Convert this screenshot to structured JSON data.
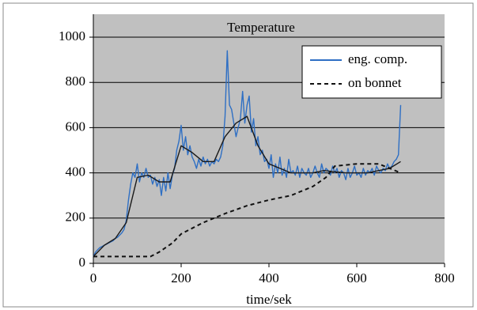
{
  "chart_data": {
    "type": "line",
    "title": "Temperature",
    "x_label": "time/sek",
    "xlim": [
      0,
      800
    ],
    "xticks": [
      0,
      200,
      400,
      600,
      800
    ],
    "ylim": [
      0,
      1000
    ],
    "yticks": [
      0,
      200,
      400,
      600,
      800,
      1000
    ],
    "grid": true,
    "legend": "upper right",
    "series": [
      {
        "name": "eng. comp.",
        "color": "#2e6fc4",
        "dash": false,
        "x": [
          0,
          5,
          10,
          15,
          20,
          25,
          30,
          35,
          40,
          45,
          50,
          55,
          60,
          65,
          70,
          75,
          80,
          85,
          90,
          95,
          100,
          105,
          110,
          115,
          120,
          125,
          130,
          135,
          140,
          145,
          150,
          155,
          160,
          165,
          170,
          175,
          180,
          185,
          190,
          195,
          200,
          205,
          210,
          215,
          220,
          225,
          230,
          235,
          240,
          245,
          250,
          255,
          260,
          265,
          270,
          275,
          280,
          285,
          290,
          295,
          300,
          305,
          310,
          315,
          320,
          325,
          330,
          335,
          340,
          345,
          350,
          355,
          360,
          365,
          370,
          375,
          380,
          385,
          390,
          395,
          400,
          405,
          410,
          415,
          420,
          425,
          430,
          435,
          440,
          445,
          450,
          455,
          460,
          465,
          470,
          475,
          480,
          485,
          490,
          495,
          500,
          505,
          510,
          515,
          520,
          525,
          530,
          535,
          540,
          545,
          550,
          555,
          560,
          565,
          570,
          575,
          580,
          585,
          590,
          595,
          600,
          605,
          610,
          615,
          620,
          625,
          630,
          635,
          640,
          645,
          650,
          655,
          660,
          665,
          670,
          675,
          680,
          685,
          690,
          695,
          700
        ],
        "values": [
          30,
          50,
          60,
          70,
          75,
          80,
          85,
          90,
          95,
          100,
          110,
          115,
          125,
          135,
          150,
          190,
          280,
          350,
          400,
          380,
          440,
          360,
          400,
          380,
          420,
          380,
          390,
          350,
          380,
          340,
          370,
          300,
          380,
          320,
          400,
          330,
          390,
          420,
          500,
          540,
          610,
          500,
          560,
          480,
          520,
          470,
          450,
          420,
          460,
          430,
          470,
          440,
          460,
          430,
          450,
          440,
          460,
          450,
          470,
          520,
          650,
          940,
          700,
          680,
          620,
          560,
          600,
          640,
          760,
          620,
          700,
          740,
          580,
          640,
          520,
          560,
          480,
          500,
          450,
          460,
          420,
          480,
          380,
          440,
          400,
          470,
          390,
          420,
          380,
          460,
          400,
          410,
          390,
          430,
          380,
          420,
          400,
          390,
          420,
          380,
          400,
          430,
          400,
          380,
          440,
          400,
          420,
          410,
          390,
          430,
          400,
          420,
          380,
          410,
          400,
          370,
          420,
          380,
          400,
          430,
          390,
          400,
          380,
          420,
          390,
          410,
          400,
          420,
          390,
          430,
          410,
          400,
          420,
          410,
          440,
          420,
          430,
          450,
          460,
          480,
          700
        ]
      },
      {
        "color": "#1a1a1a",
        "dash": false,
        "x": [
          0,
          25,
          50,
          75,
          100,
          125,
          150,
          175,
          200,
          225,
          250,
          275,
          300,
          325,
          350,
          375,
          400,
          425,
          450,
          475,
          500,
          525,
          550,
          575,
          600,
          625,
          650,
          675,
          700
        ],
        "values": [
          30,
          80,
          110,
          180,
          380,
          390,
          360,
          360,
          520,
          490,
          450,
          450,
          560,
          620,
          650,
          520,
          440,
          420,
          400,
          400,
          400,
          410,
          405,
          400,
          400,
          400,
          410,
          420,
          450
        ]
      },
      {
        "name": "on bonnet",
        "color": "#111111",
        "dash": true,
        "x": [
          0,
          20,
          60,
          100,
          130,
          150,
          180,
          200,
          250,
          300,
          350,
          400,
          450,
          500,
          530,
          550,
          600,
          650,
          700
        ],
        "values": [
          30,
          30,
          30,
          30,
          30,
          50,
          90,
          130,
          180,
          220,
          255,
          280,
          300,
          340,
          380,
          430,
          440,
          440,
          400
        ]
      }
    ]
  }
}
